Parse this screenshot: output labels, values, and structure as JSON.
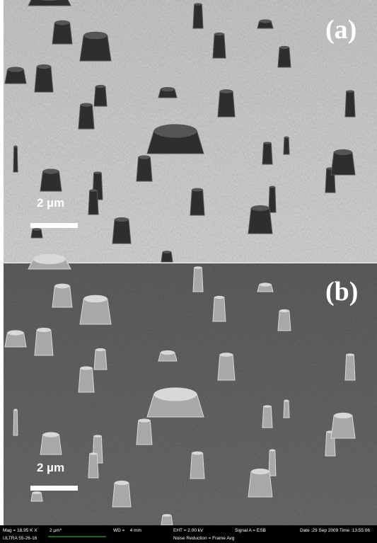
{
  "panels": [
    {
      "label": "(a)",
      "scale_bar": "2 µm"
    },
    {
      "label": "(b)",
      "scale_bar": "2 µm"
    }
  ],
  "footer": {
    "mag": "Mag = 18.95 K X",
    "scale": "2 µm*",
    "wd": "WD =    4 mm",
    "eht": "EHT = 2.00 kV",
    "signal": "Signal A = ESB",
    "datetime": "Date :29 Sep 2009 Time :13:55:06",
    "instrument": "ULTRA 55-26-16",
    "noise": "Noise Reduction = Frame Avg"
  }
}
